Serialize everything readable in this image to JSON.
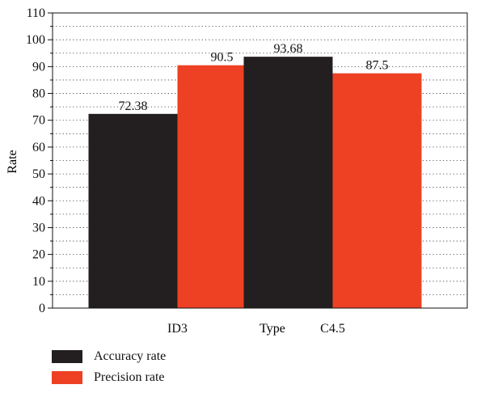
{
  "chart_data": {
    "type": "bar",
    "categories": [
      "ID3",
      "C4.5"
    ],
    "series": [
      {
        "name": "Accuracy rate",
        "values": [
          72.38,
          93.68
        ],
        "labels": [
          "72.38",
          "93.68"
        ],
        "color": "#231f20"
      },
      {
        "name": "Precision rate",
        "values": [
          90.5,
          87.5
        ],
        "labels": [
          "90.5",
          "87.5"
        ],
        "color": "#ee4123"
      }
    ],
    "xlabel": "Type",
    "ylabel": "Rate",
    "ylim": [
      0,
      110
    ],
    "yticks": [
      0,
      10,
      20,
      30,
      40,
      50,
      60,
      70,
      80,
      90,
      100,
      110
    ],
    "grid": "horizontal dotted",
    "legend": "bottom-left"
  }
}
